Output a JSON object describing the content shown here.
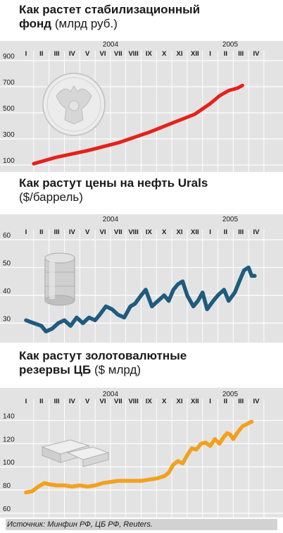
{
  "colors": {
    "panel_bg": "#e3e3e3",
    "grid": "#ffffff",
    "reserve_fund": "#e5211c",
    "oil": "#1f5b7e",
    "gold_reserves": "#f2a11f"
  },
  "charts": {
    "fund": {
      "title_bold": "Как растет стабилизационный",
      "title_bold2": "фонд",
      "title_unit": "(млрд руб.)"
    },
    "oil": {
      "title_bold": "Как растут цены на нефть Urals",
      "title_unit": "($/баррель)"
    },
    "reserves": {
      "title_bold": "Как растут золотовалютные",
      "title_bold2": "резервы ЦБ",
      "title_unit": "($ млрд)"
    }
  },
  "months": [
    "I",
    "II",
    "III",
    "IV",
    "V",
    "VI",
    "VII",
    "VIII",
    "IX",
    "X",
    "XI",
    "XII",
    "I",
    "II",
    "III",
    "IV"
  ],
  "year_labels": [
    {
      "label": "2004",
      "month_index": 5.5
    },
    {
      "label": "2005",
      "month_index": 13.3
    }
  ],
  "chart_data": [
    {
      "type": "line",
      "title": "Как растет стабилизационный фонд",
      "ylabel": "(млрд руб.)",
      "ylim": [
        100,
        900
      ],
      "yticks": [
        100,
        300,
        500,
        700,
        900
      ],
      "series": [
        {
          "x": [
            0.5,
            2,
            4,
            6,
            8,
            9.5,
            11,
            12,
            12.6,
            13.2,
            13.8,
            14.1
          ],
          "values": [
            110,
            160,
            210,
            270,
            350,
            420,
            490,
            570,
            630,
            670,
            690,
            710
          ]
        }
      ],
      "icon_name": "coat-of-arms-coin-icon"
    },
    {
      "type": "line",
      "title": "Как растут цены на нефть Urals",
      "ylabel": "($/баррель)",
      "ylim": [
        25,
        60
      ],
      "yticks": [
        30,
        40,
        50,
        60
      ],
      "series": [
        {
          "x": [
            0,
            0.5,
            1,
            1.3,
            1.7,
            2.1,
            2.5,
            2.9,
            3.3,
            3.7,
            4.1,
            4.5,
            4.8,
            5.2,
            5.6,
            6.0,
            6.4,
            6.8,
            7.1,
            7.5,
            7.8,
            8.2,
            8.6,
            9.0,
            9.3,
            9.6,
            9.9,
            10.2,
            10.5,
            10.9,
            11.2,
            11.5,
            11.8,
            12.2,
            12.5,
            12.9,
            13.2,
            13.6,
            13.9,
            14.2,
            14.5,
            14.7,
            14.9
          ],
          "values": [
            31,
            30,
            29,
            27,
            28,
            30,
            31,
            29,
            32,
            30,
            32,
            31,
            33,
            36,
            35,
            33,
            32,
            36,
            37,
            40,
            42,
            36,
            38,
            40,
            38,
            42,
            44,
            45,
            40,
            36,
            38,
            41,
            35,
            38,
            40,
            42,
            38,
            41,
            45,
            49,
            50,
            47,
            47
          ]
        }
      ],
      "icon_name": "oil-barrel-icon"
    },
    {
      "type": "line",
      "title": "Как растут золотовалютные резервы ЦБ",
      "ylabel": "($ млрд)",
      "ylim": [
        60,
        150
      ],
      "yticks": [
        60,
        80,
        100,
        120,
        140
      ],
      "series": [
        {
          "x": [
            0,
            0.4,
            0.8,
            1.2,
            1.5,
            2.0,
            2.5,
            3.0,
            3.5,
            4.0,
            4.5,
            5.0,
            5.5,
            6.0,
            6.5,
            7.0,
            7.5,
            8.0,
            8.5,
            9.0,
            9.3,
            9.6,
            9.9,
            10.2,
            10.5,
            10.8,
            11.1,
            11.4,
            11.7,
            12.0,
            12.3,
            12.6,
            12.9,
            13.1,
            13.3,
            13.5,
            13.8,
            14.1,
            14.4,
            14.7
          ],
          "values": [
            78,
            79,
            83,
            86,
            85,
            84,
            84,
            83,
            84,
            83,
            84,
            86,
            87,
            88,
            88,
            88,
            88,
            89,
            90,
            92,
            95,
            102,
            105,
            103,
            110,
            116,
            115,
            120,
            121,
            118,
            124,
            120,
            126,
            129,
            128,
            124,
            130,
            135,
            137,
            139
          ]
        }
      ],
      "icon_name": "gold-bars-icon"
    }
  ],
  "source": "Источник: Минфин РФ, ЦБ РФ, Reuters."
}
